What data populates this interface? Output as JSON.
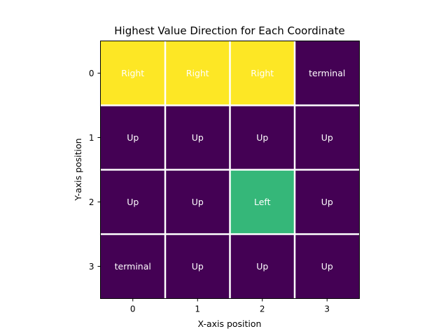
{
  "chart_data": {
    "type": "heatmap",
    "title": "Highest Value Direction for Each Coordinate",
    "xlabel": "X-axis position",
    "ylabel": "Y-axis position",
    "x_ticks": [
      "0",
      "1",
      "2",
      "3"
    ],
    "y_ticks": [
      "0",
      "1",
      "2",
      "3"
    ],
    "grid": true,
    "cells": [
      [
        "Right",
        "Right",
        "Right",
        "terminal"
      ],
      [
        "Up",
        "Up",
        "Up",
        "Up"
      ],
      [
        "Up",
        "Up",
        "Left",
        "Up"
      ],
      [
        "terminal",
        "Up",
        "Up",
        "Up"
      ]
    ],
    "colors": [
      [
        "#fde725",
        "#fde725",
        "#fde725",
        "#440154"
      ],
      [
        "#440154",
        "#440154",
        "#440154",
        "#440154"
      ],
      [
        "#440154",
        "#440154",
        "#35b779",
        "#440154"
      ],
      [
        "#440154",
        "#440154",
        "#440154",
        "#440154"
      ]
    ],
    "grid_color": "#ffffff"
  }
}
